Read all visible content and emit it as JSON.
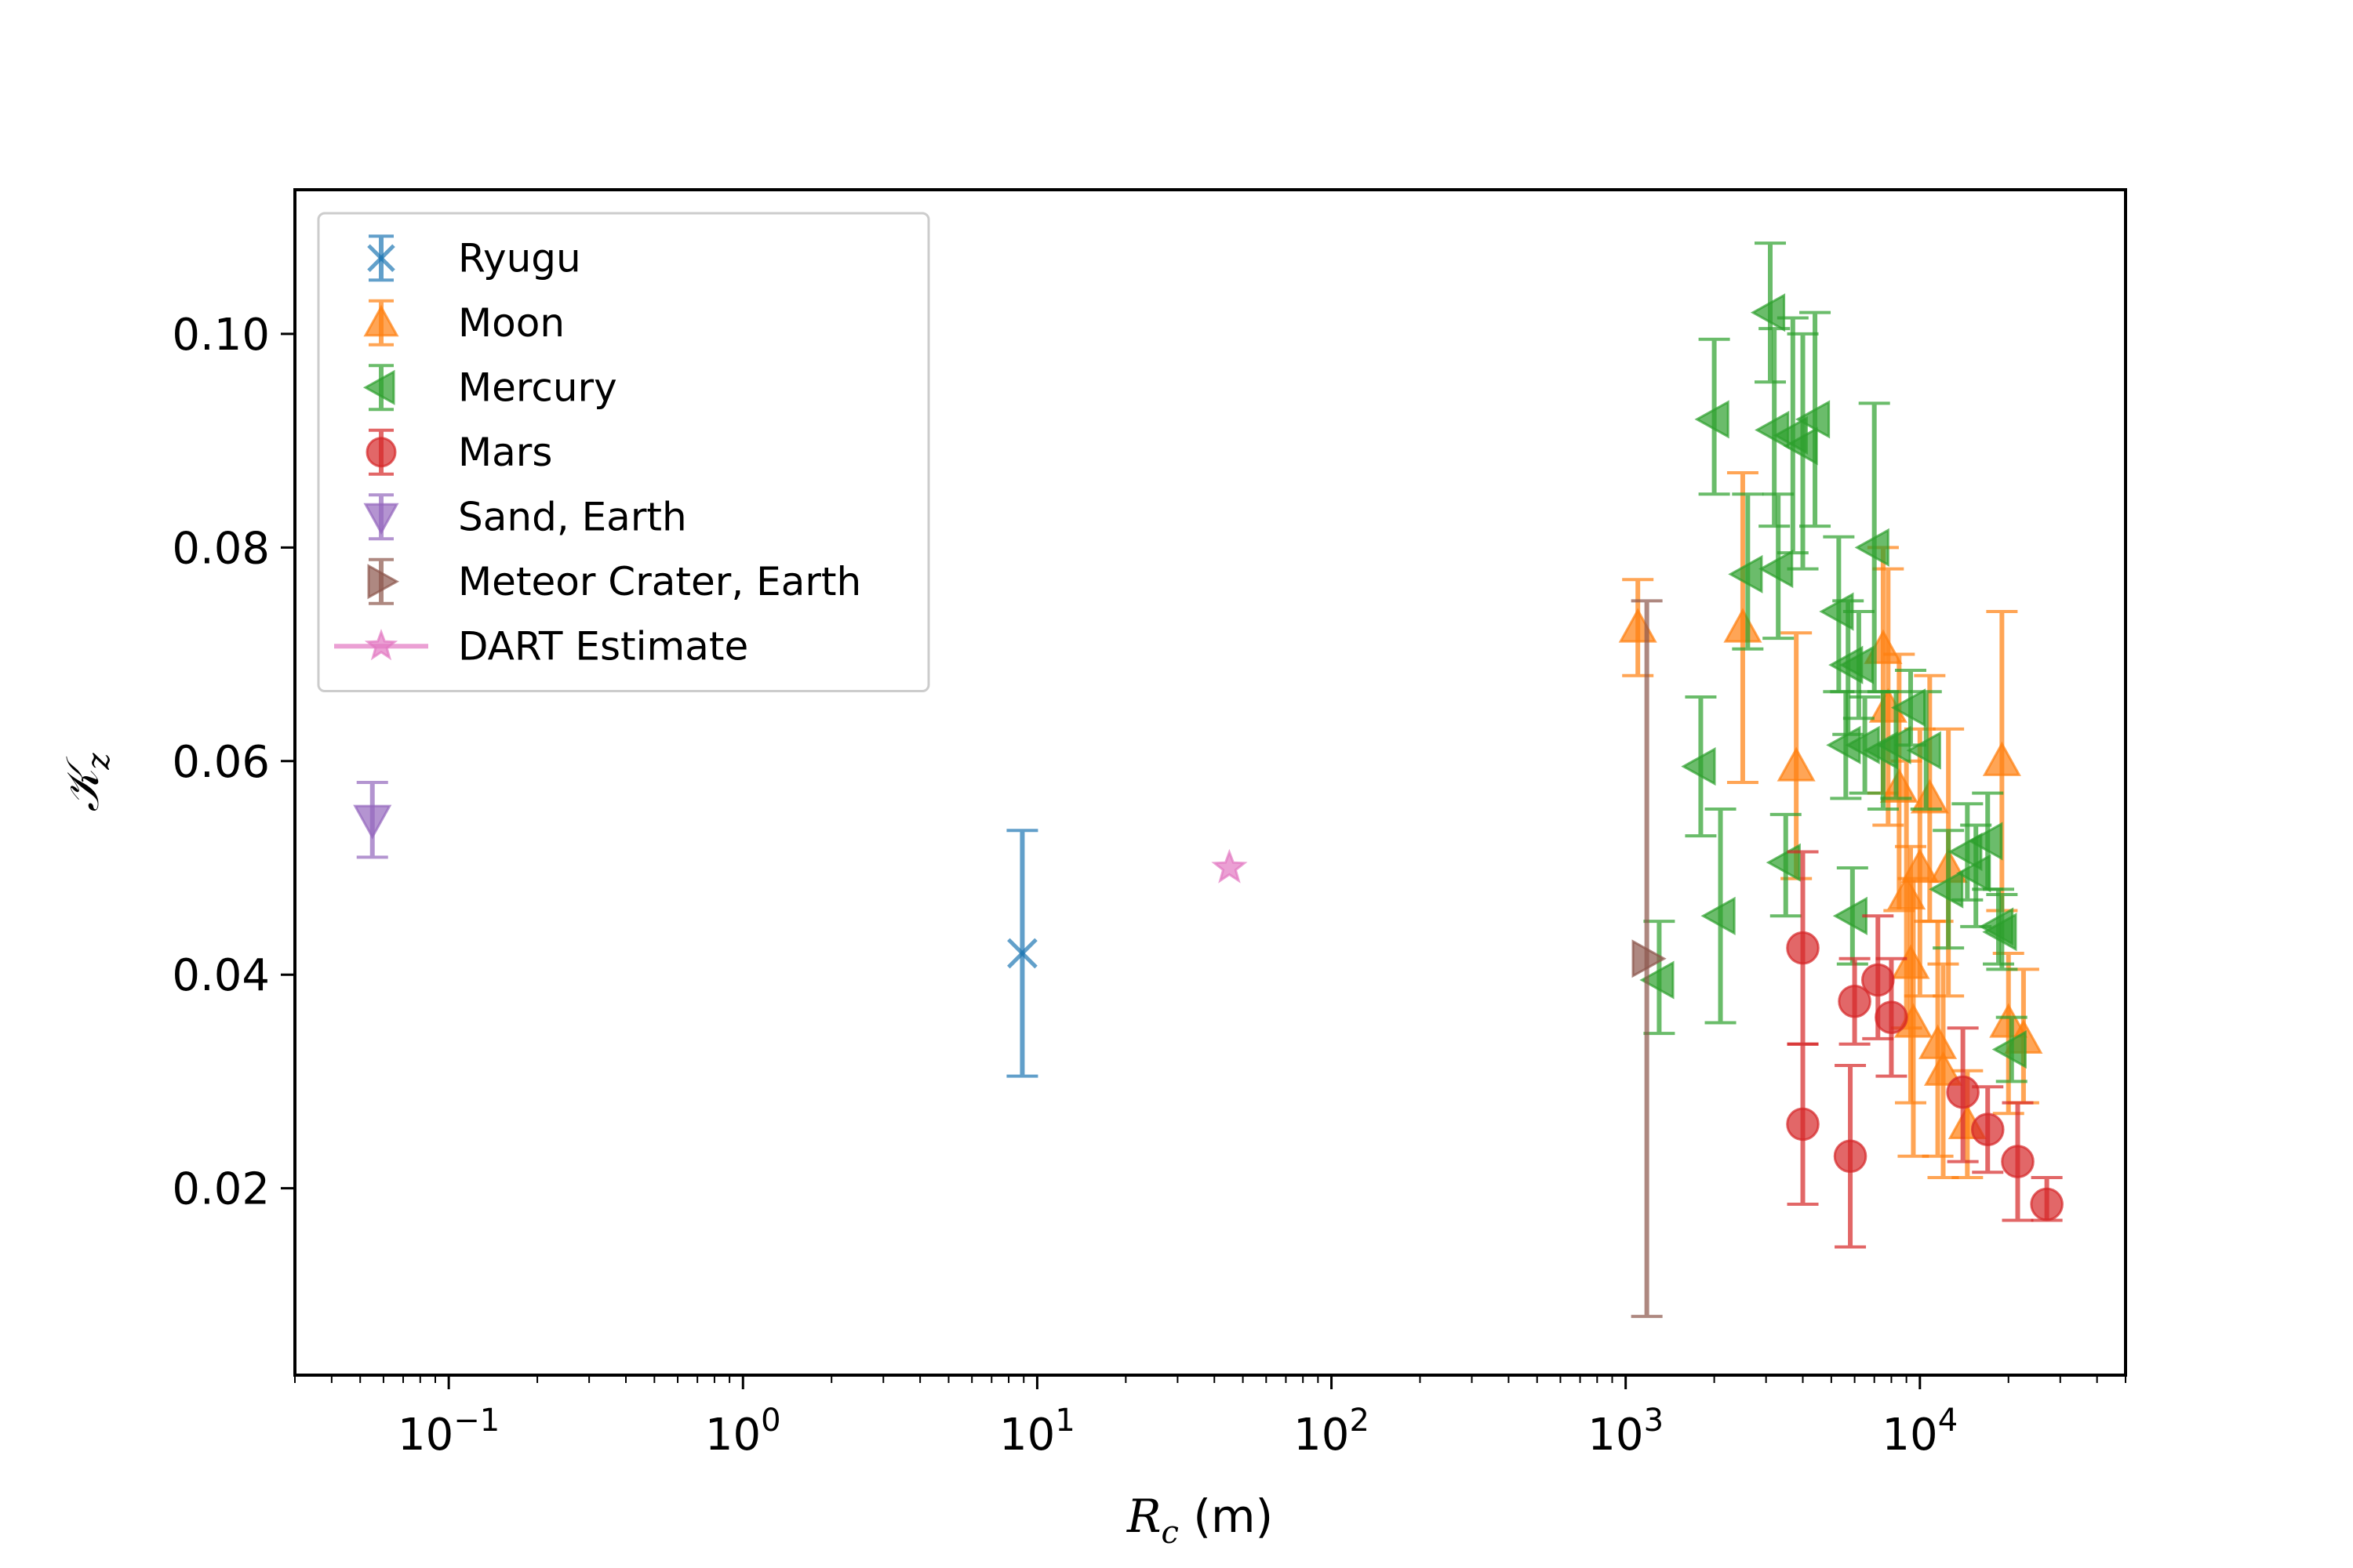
{
  "chart_data": {
    "type": "scatter",
    "xscale": "log",
    "xlim": [
      0.03,
      50000
    ],
    "ylim": [
      0.0025,
      0.1135
    ],
    "xticks": [
      {
        "value": 0.1,
        "base": "10",
        "exp": "−1"
      },
      {
        "value": 1,
        "base": "10",
        "exp": "0"
      },
      {
        "value": 10,
        "base": "10",
        "exp": "1"
      },
      {
        "value": 100,
        "base": "10",
        "exp": "2"
      },
      {
        "value": 1000,
        "base": "10",
        "exp": "3"
      },
      {
        "value": 10000,
        "base": "10",
        "exp": "4"
      }
    ],
    "yticks": [
      {
        "value": 0.02,
        "label": "0.02"
      },
      {
        "value": 0.04,
        "label": "0.04"
      },
      {
        "value": 0.06,
        "label": "0.06"
      },
      {
        "value": 0.08,
        "label": "0.08"
      },
      {
        "value": 0.1,
        "label": "0.10"
      }
    ],
    "xlabel": {
      "symbol": "R",
      "sub": "c",
      "rest": " (m)"
    },
    "ylabel": {
      "symbol": "𝒦",
      "sub": "z"
    },
    "legend_position": "upper-left",
    "series": [
      {
        "name": "Ryugu",
        "marker": "x",
        "color": "#1f77b4",
        "points": [
          {
            "x": 8.9,
            "y": 0.042,
            "ylo": 0.0305,
            "yhi": 0.0535
          }
        ]
      },
      {
        "name": "Moon",
        "marker": "triangle-up",
        "color": "#ff7f0e",
        "points": [
          {
            "x": 1100,
            "y": 0.0725,
            "ylo": 0.068,
            "yhi": 0.077
          },
          {
            "x": 2500,
            "y": 0.0725,
            "ylo": 0.058,
            "yhi": 0.087
          },
          {
            "x": 3800,
            "y": 0.0595,
            "ylo": 0.049,
            "yhi": 0.072
          },
          {
            "x": 7500,
            "y": 0.0705,
            "ylo": 0.057,
            "yhi": 0.08
          },
          {
            "x": 7800,
            "y": 0.065,
            "ylo": 0.054,
            "yhi": 0.078
          },
          {
            "x": 8500,
            "y": 0.0575,
            "ylo": 0.046,
            "yhi": 0.07
          },
          {
            "x": 9000,
            "y": 0.0475,
            "ylo": 0.035,
            "yhi": 0.06
          },
          {
            "x": 9300,
            "y": 0.041,
            "ylo": 0.028,
            "yhi": 0.052
          },
          {
            "x": 9500,
            "y": 0.0355,
            "ylo": 0.023,
            "yhi": 0.049
          },
          {
            "x": 10000,
            "y": 0.05,
            "ylo": 0.038,
            "yhi": 0.063
          },
          {
            "x": 10800,
            "y": 0.0565,
            "ylo": 0.045,
            "yhi": 0.068
          },
          {
            "x": 11500,
            "y": 0.0335,
            "ylo": 0.023,
            "yhi": 0.045
          },
          {
            "x": 12000,
            "y": 0.031,
            "ylo": 0.021,
            "yhi": 0.041
          },
          {
            "x": 12500,
            "y": 0.05,
            "ylo": 0.038,
            "yhi": 0.063
          },
          {
            "x": 14500,
            "y": 0.026,
            "ylo": 0.021,
            "yhi": 0.031
          },
          {
            "x": 19000,
            "y": 0.06,
            "ylo": 0.046,
            "yhi": 0.074
          },
          {
            "x": 20000,
            "y": 0.0355,
            "ylo": 0.027,
            "yhi": 0.042
          },
          {
            "x": 22500,
            "y": 0.034,
            "ylo": 0.028,
            "yhi": 0.0405
          }
        ]
      },
      {
        "name": "Mercury",
        "marker": "triangle-left",
        "color": "#2ca02c",
        "points": [
          {
            "x": 1300,
            "y": 0.0395,
            "ylo": 0.0345,
            "yhi": 0.045
          },
          {
            "x": 1800,
            "y": 0.0595,
            "ylo": 0.053,
            "yhi": 0.066
          },
          {
            "x": 2000,
            "y": 0.092,
            "ylo": 0.085,
            "yhi": 0.0995
          },
          {
            "x": 2100,
            "y": 0.0455,
            "ylo": 0.0355,
            "yhi": 0.0555
          },
          {
            "x": 2600,
            "y": 0.0775,
            "ylo": 0.0705,
            "yhi": 0.085
          },
          {
            "x": 3100,
            "y": 0.102,
            "ylo": 0.0955,
            "yhi": 0.1085
          },
          {
            "x": 3200,
            "y": 0.091,
            "ylo": 0.082,
            "yhi": 0.1005
          },
          {
            "x": 3300,
            "y": 0.078,
            "ylo": 0.0715,
            "yhi": 0.085
          },
          {
            "x": 3500,
            "y": 0.0505,
            "ylo": 0.0455,
            "yhi": 0.055
          },
          {
            "x": 3700,
            "y": 0.0905,
            "ylo": 0.0795,
            "yhi": 0.1015
          },
          {
            "x": 4000,
            "y": 0.0895,
            "ylo": 0.078,
            "yhi": 0.1
          },
          {
            "x": 4400,
            "y": 0.092,
            "ylo": 0.082,
            "yhi": 0.102
          },
          {
            "x": 5300,
            "y": 0.074,
            "ylo": 0.0665,
            "yhi": 0.081
          },
          {
            "x": 5600,
            "y": 0.0615,
            "ylo": 0.0565,
            "yhi": 0.0665
          },
          {
            "x": 5700,
            "y": 0.069,
            "ylo": 0.0625,
            "yhi": 0.075
          },
          {
            "x": 5900,
            "y": 0.0455,
            "ylo": 0.041,
            "yhi": 0.05
          },
          {
            "x": 6200,
            "y": 0.069,
            "ylo": 0.064,
            "yhi": 0.074
          },
          {
            "x": 6500,
            "y": 0.0615,
            "ylo": 0.057,
            "yhi": 0.066
          },
          {
            "x": 7000,
            "y": 0.08,
            "ylo": 0.0665,
            "yhi": 0.0935
          },
          {
            "x": 7500,
            "y": 0.061,
            "ylo": 0.0555,
            "yhi": 0.0665
          },
          {
            "x": 8300,
            "y": 0.0615,
            "ylo": 0.0565,
            "yhi": 0.0665
          },
          {
            "x": 9300,
            "y": 0.065,
            "ylo": 0.0615,
            "yhi": 0.0685
          },
          {
            "x": 10500,
            "y": 0.061,
            "ylo": 0.0555,
            "yhi": 0.0665
          },
          {
            "x": 12500,
            "y": 0.048,
            "ylo": 0.0425,
            "yhi": 0.0535
          },
          {
            "x": 14500,
            "y": 0.0515,
            "ylo": 0.047,
            "yhi": 0.056
          },
          {
            "x": 15500,
            "y": 0.0495,
            "ylo": 0.0445,
            "yhi": 0.054
          },
          {
            "x": 17000,
            "y": 0.0525,
            "ylo": 0.048,
            "yhi": 0.057
          },
          {
            "x": 18500,
            "y": 0.0445,
            "ylo": 0.041,
            "yhi": 0.048
          },
          {
            "x": 19000,
            "y": 0.044,
            "ylo": 0.0405,
            "yhi": 0.0475
          },
          {
            "x": 20500,
            "y": 0.033,
            "ylo": 0.03,
            "yhi": 0.036
          }
        ]
      },
      {
        "name": "Mars",
        "marker": "circle",
        "color": "#d62728",
        "points": [
          {
            "x": 4000,
            "y": 0.0425,
            "ylo": 0.0335,
            "yhi": 0.0515
          },
          {
            "x": 4000,
            "y": 0.026,
            "ylo": 0.0185,
            "yhi": 0.0335
          },
          {
            "x": 5800,
            "y": 0.023,
            "ylo": 0.0145,
            "yhi": 0.0315
          },
          {
            "x": 6000,
            "y": 0.0375,
            "ylo": 0.0335,
            "yhi": 0.0415
          },
          {
            "x": 7200,
            "y": 0.0395,
            "ylo": 0.034,
            "yhi": 0.0455
          },
          {
            "x": 8000,
            "y": 0.036,
            "ylo": 0.0305,
            "yhi": 0.0415
          },
          {
            "x": 14000,
            "y": 0.029,
            "ylo": 0.0225,
            "yhi": 0.035
          },
          {
            "x": 17000,
            "y": 0.0255,
            "ylo": 0.0215,
            "yhi": 0.0295
          },
          {
            "x": 21500,
            "y": 0.0225,
            "ylo": 0.017,
            "yhi": 0.028
          },
          {
            "x": 27000,
            "y": 0.0185,
            "ylo": 0.017,
            "yhi": 0.021
          }
        ]
      },
      {
        "name": "Sand, Earth",
        "marker": "triangle-down",
        "color": "#9467bd",
        "points": [
          {
            "x": 0.055,
            "y": 0.0545,
            "ylo": 0.051,
            "yhi": 0.058
          }
        ]
      },
      {
        "name": "Meteor Crater, Earth",
        "marker": "triangle-right",
        "color": "#8c564b",
        "points": [
          {
            "x": 1180,
            "y": 0.0415,
            "ylo": 0.008,
            "yhi": 0.075
          }
        ]
      },
      {
        "name": "DART Estimate",
        "marker": "star",
        "color": "#e377c2",
        "points": [
          {
            "x": 45,
            "y": 0.05
          }
        ]
      }
    ]
  }
}
